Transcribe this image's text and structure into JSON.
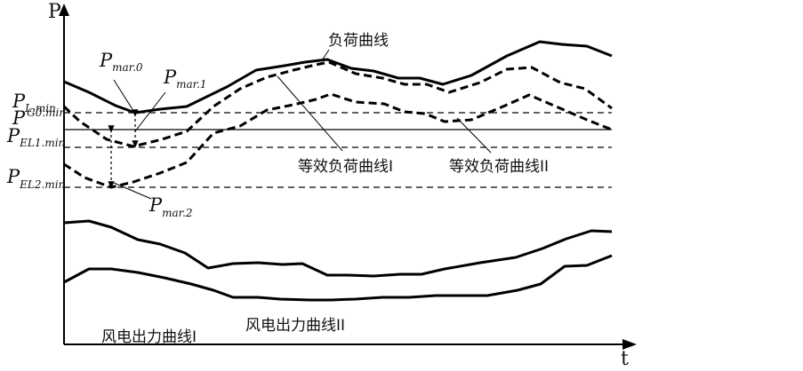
{
  "axes": {
    "y_label": "P",
    "x_label": "t"
  },
  "levels": [
    {
      "id": "L_min",
      "main": "P",
      "sub": "L.min",
      "style": "dashed"
    },
    {
      "id": "G0_min",
      "main": "P",
      "sub": "G0.min",
      "style": "solid"
    },
    {
      "id": "EL1_min",
      "main": "P",
      "sub": "EL1.min",
      "style": "dashed"
    },
    {
      "id": "EL2_min",
      "main": "P",
      "sub": "EL2.min",
      "style": "dashed"
    }
  ],
  "margins": [
    {
      "id": "mar0",
      "main": "P",
      "sub": "mar.0"
    },
    {
      "id": "mar1",
      "main": "P",
      "sub": "mar.1"
    },
    {
      "id": "mar2",
      "main": "P",
      "sub": "mar.2"
    }
  ],
  "curves": {
    "load": "负荷曲线",
    "eq_load_1": "等效负荷曲线I",
    "eq_load_2": "等效负荷曲线II",
    "wind_1": "风电出力曲线I",
    "wind_2": "风电出力曲线II"
  }
}
